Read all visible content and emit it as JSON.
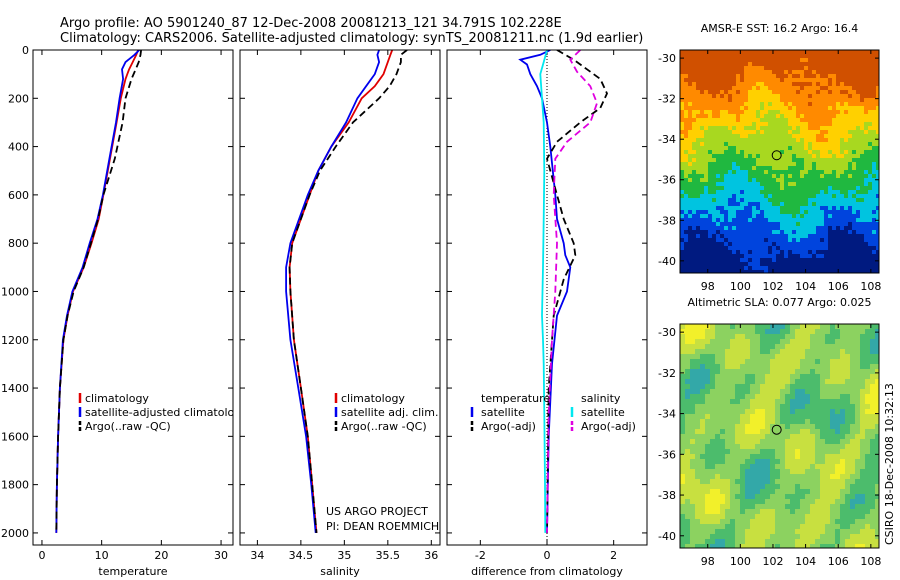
{
  "header": {
    "line1": "Argo profile: AO 5901240_87 12-Dec-2008 20081213_121 34.791S 102.228E",
    "line2": "Climatology: CARS2006. Satellite-adjusted climatology: synTS_20081211.nc (1.9d earlier)"
  },
  "credit": {
    "line1": "US ARGO PROJECT",
    "line2": "PI: DEAN ROEMMICH"
  },
  "side_label": "CSIRO 18-Dec-2008 10:32:13",
  "colors": {
    "red": "#e00000",
    "blue": "#0000ee",
    "black": "#000000",
    "cyan": "#00e8f0",
    "magenta": "#e000e0"
  },
  "chart_data": [
    {
      "type": "line",
      "xlabel": "temperature",
      "ylabel": "",
      "xlim": [
        -1.5,
        32
      ],
      "ylim": [
        2050,
        0
      ],
      "y_reversed": true,
      "xticks": [
        0,
        10,
        20,
        30
      ],
      "yticks": [
        0,
        200,
        400,
        600,
        800,
        1000,
        1200,
        1400,
        1600,
        1800,
        2000
      ],
      "legend_position": "middle-right",
      "series": [
        {
          "name": "climatology",
          "color": "#e00000",
          "style": "solid",
          "x": [
            16.1,
            15.8,
            15.2,
            14.6,
            14.0,
            13.2,
            12.5,
            11.4,
            10.3,
            9.5,
            8.3,
            7.0,
            5.2,
            4.3,
            3.6,
            3.0,
            2.7,
            2.5,
            2.4
          ],
          "y": [
            0,
            20,
            50,
            80,
            120,
            200,
            300,
            450,
            600,
            700,
            800,
            900,
            1000,
            1100,
            1200,
            1400,
            1600,
            1800,
            2000
          ]
        },
        {
          "name": "satellite-adjusted climatology",
          "color": "#0000ee",
          "style": "solid",
          "x": [
            16.3,
            15.5,
            14.0,
            13.4,
            13.6,
            13.0,
            12.4,
            11.3,
            10.2,
            9.3,
            8.0,
            6.8,
            5.1,
            4.2,
            3.5,
            3.0,
            2.7,
            2.5,
            2.4
          ],
          "y": [
            0,
            20,
            50,
            80,
            120,
            200,
            300,
            450,
            600,
            700,
            800,
            900,
            1000,
            1100,
            1200,
            1400,
            1600,
            1800,
            2000
          ]
        },
        {
          "name": "Argo(..raw -QC)",
          "color": "#000000",
          "style": "dashed",
          "x": [
            16.6,
            16.5,
            16.2,
            15.7,
            15.0,
            14.0,
            13.5,
            12.2,
            10.3,
            9.4,
            8.2,
            7.0,
            5.3,
            4.3,
            3.6,
            3.0,
            2.7,
            2.5,
            2.4
          ],
          "y": [
            0,
            20,
            50,
            80,
            120,
            200,
            300,
            450,
            600,
            700,
            800,
            900,
            1000,
            1100,
            1200,
            1400,
            1600,
            1800,
            2000
          ]
        }
      ]
    },
    {
      "type": "line",
      "xlabel": "salinity",
      "ylabel": "",
      "xlim": [
        33.8,
        36.1
      ],
      "ylim": [
        2050,
        0
      ],
      "y_reversed": true,
      "xticks": [
        34,
        34.5,
        35,
        35.5,
        36
      ],
      "legend_position": "middle-right",
      "series": [
        {
          "name": "climatology",
          "color": "#e00000",
          "style": "solid",
          "x": [
            35.55,
            35.53,
            35.5,
            35.45,
            35.35,
            35.2,
            35.05,
            34.85,
            34.7,
            34.6,
            34.5,
            34.4,
            34.37,
            34.38,
            34.42,
            34.5,
            34.58,
            34.63,
            34.68
          ],
          "y": [
            0,
            20,
            50,
            100,
            150,
            200,
            300,
            400,
            500,
            600,
            700,
            800,
            900,
            1000,
            1200,
            1400,
            1600,
            1800,
            2000
          ]
        },
        {
          "name": "satellite adj. clim.",
          "color": "#0000ee",
          "style": "solid",
          "x": [
            35.4,
            35.38,
            35.4,
            35.35,
            35.25,
            35.15,
            35.02,
            34.85,
            34.7,
            34.58,
            34.48,
            34.38,
            34.33,
            34.33,
            34.38,
            34.47,
            34.56,
            34.62,
            34.67
          ],
          "y": [
            0,
            20,
            50,
            100,
            150,
            200,
            300,
            400,
            500,
            600,
            700,
            800,
            900,
            1000,
            1200,
            1400,
            1600,
            1800,
            2000
          ]
        },
        {
          "name": "Argo(..raw -QC)",
          "color": "#000000",
          "style": "dashed",
          "x": [
            35.72,
            35.65,
            35.65,
            35.6,
            35.52,
            35.4,
            35.1,
            34.9,
            34.72,
            34.6,
            34.5,
            34.4,
            34.37,
            34.38,
            34.42,
            34.5,
            34.58,
            34.63,
            34.68
          ],
          "y": [
            0,
            20,
            50,
            100,
            150,
            200,
            300,
            400,
            500,
            600,
            700,
            800,
            900,
            1000,
            1200,
            1400,
            1600,
            1800,
            2000
          ]
        }
      ]
    },
    {
      "type": "line",
      "xlabel": "difference from climatology",
      "ylabel": "",
      "xlim": [
        -3,
        3
      ],
      "ylim": [
        2050,
        0
      ],
      "y_reversed": true,
      "xticks": [
        -2,
        0,
        2
      ],
      "legend_position": "middle",
      "legend_groups": [
        "temperature",
        "salinity"
      ],
      "series": [
        {
          "name": "satellite",
          "group": "temperature",
          "color": "#0000ee",
          "style": "solid",
          "x": [
            0.1,
            -0.2,
            -0.8,
            -0.6,
            -0.5,
            -0.3,
            -0.15,
            0.0,
            0.1,
            0.25,
            0.3,
            0.5,
            0.55,
            0.7,
            0.6,
            0.3,
            0.15,
            0.05,
            0.0
          ],
          "y": [
            0,
            20,
            40,
            60,
            100,
            150,
            200,
            300,
            400,
            600,
            700,
            800,
            850,
            900,
            1000,
            1100,
            1300,
            1600,
            2000
          ]
        },
        {
          "name": "Argo(-adj)",
          "group": "temperature",
          "color": "#000000",
          "style": "dashed",
          "x": [
            0.3,
            0.8,
            1.2,
            1.6,
            1.8,
            1.6,
            1.0,
            0.3,
            0.0,
            0.3,
            0.5,
            0.8,
            0.85,
            0.5,
            0.2,
            0.05,
            0.0
          ],
          "y": [
            0,
            40,
            80,
            120,
            180,
            240,
            300,
            380,
            450,
            600,
            700,
            800,
            850,
            950,
            1100,
            1400,
            2000
          ]
        },
        {
          "name": "satellite",
          "group": "salinity",
          "color": "#00e8f0",
          "style": "solid",
          "x": [
            0.0,
            -0.1,
            -0.2,
            -0.15,
            -0.1,
            -0.08,
            -0.1,
            -0.12,
            -0.15,
            -0.12,
            -0.1,
            -0.08,
            -0.06,
            -0.05
          ],
          "y": [
            0,
            50,
            100,
            200,
            300,
            500,
            700,
            900,
            1100,
            1200,
            1300,
            1500,
            1800,
            2000
          ]
        },
        {
          "name": "Argo(-adj)",
          "group": "salinity",
          "color": "#e000e0",
          "style": "dashed",
          "x": [
            1.0,
            0.7,
            0.9,
            1.3,
            1.5,
            1.3,
            0.6,
            0.25,
            0.2,
            0.3,
            0.25,
            0.15,
            0.05,
            0.0
          ],
          "y": [
            0,
            40,
            90,
            150,
            220,
            300,
            380,
            450,
            600,
            800,
            1000,
            1200,
            1500,
            2000
          ]
        }
      ]
    },
    {
      "type": "heatmap",
      "title": "AMSR-E SST: 16.2 Argo: 16.4",
      "xlim": [
        96.3,
        108.5
      ],
      "ylim": [
        -40.6,
        -29.6
      ],
      "xticks": [
        98,
        100,
        102,
        104,
        106,
        108
      ],
      "yticks": [
        -30,
        -32,
        -34,
        -36,
        -38,
        -40
      ],
      "marker": {
        "lon": 102.228,
        "lat": -34.791
      },
      "colors": [
        "#001a80",
        "#0044dd",
        "#00c4e0",
        "#20b840",
        "#a8d820",
        "#ffd000",
        "#ff8a00",
        "#d05000"
      ]
    },
    {
      "type": "heatmap",
      "title": "Altimetric SLA: 0.077 Argo: 0.025",
      "xlim": [
        96.3,
        108.5
      ],
      "ylim": [
        -40.6,
        -29.6
      ],
      "xticks": [
        98,
        100,
        102,
        104,
        106,
        108
      ],
      "yticks": [
        -30,
        -32,
        -34,
        -36,
        -38,
        -40
      ],
      "marker": {
        "lon": 102.228,
        "lat": -34.791
      },
      "colors": [
        "#33a8a8",
        "#4cbc6c",
        "#8cd260",
        "#c8e040",
        "#f2f02a"
      ]
    }
  ]
}
